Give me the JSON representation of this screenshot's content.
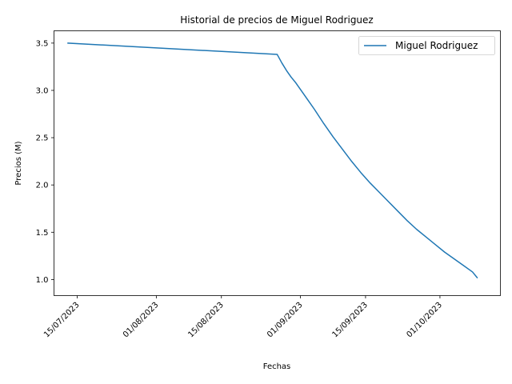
{
  "chart_data": {
    "type": "line",
    "title": "Historial de precios de Miguel Rodriguez",
    "xlabel": "Fechas",
    "ylabel": "Precios (M)",
    "x_tick_labels": [
      "15/07/2023",
      "01/08/2023",
      "15/08/2023",
      "01/09/2023",
      "15/09/2023",
      "01/10/2023"
    ],
    "x_tick_dates": [
      "2023-07-15",
      "2023-08-01",
      "2023-08-15",
      "2023-09-01",
      "2023-09-15",
      "2023-10-01"
    ],
    "y_ticks": [
      1.0,
      1.5,
      2.0,
      2.5,
      3.0,
      3.5
    ],
    "y_tick_labels": [
      "1.0",
      "1.5",
      "2.0",
      "2.5",
      "3.0",
      "3.5"
    ],
    "xlim": [
      "2023-07-10",
      "2023-10-14"
    ],
    "ylim": [
      0.83,
      3.63
    ],
    "grid": false,
    "legend_position": "top-right",
    "series": [
      {
        "name": "Miguel Rodriguez",
        "color": "#1f77b4",
        "x": [
          "2023-07-13",
          "2023-08-27",
          "2023-08-28",
          "2023-08-29",
          "2023-08-30",
          "2023-08-31",
          "2023-09-01",
          "2023-09-02",
          "2023-09-04",
          "2023-09-06",
          "2023-09-08",
          "2023-09-10",
          "2023-09-12",
          "2023-09-14",
          "2023-09-16",
          "2023-09-18",
          "2023-09-20",
          "2023-09-22",
          "2023-09-24",
          "2023-09-26",
          "2023-09-28",
          "2023-09-30",
          "2023-10-02",
          "2023-10-04",
          "2023-10-06",
          "2023-10-08",
          "2023-10-09"
        ],
        "y": [
          3.5,
          3.38,
          3.29,
          3.21,
          3.14,
          3.08,
          3.01,
          2.94,
          2.8,
          2.65,
          2.51,
          2.38,
          2.25,
          2.13,
          2.02,
          1.92,
          1.82,
          1.72,
          1.62,
          1.53,
          1.45,
          1.37,
          1.29,
          1.22,
          1.15,
          1.08,
          1.02
        ]
      }
    ]
  }
}
